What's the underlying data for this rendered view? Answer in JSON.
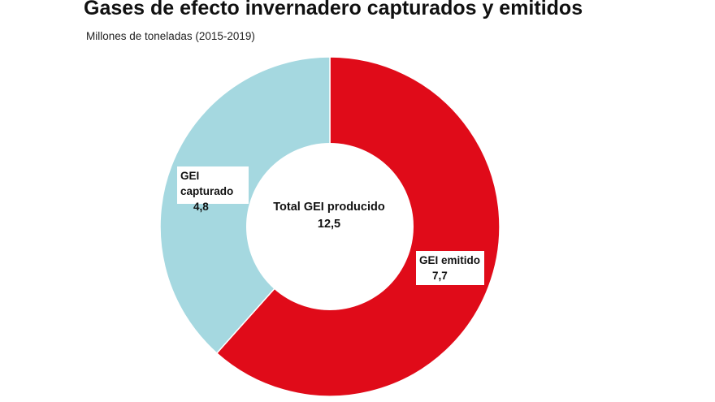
{
  "title": "Gases de efecto invernadero capturados y emitidos",
  "subtitle": "Millones de toneladas (2015-2019)",
  "chart_data": {
    "type": "pie",
    "style": "donut",
    "title": "Gases de efecto invernadero capturados y emitidos",
    "subtitle": "Millones de toneladas (2015-2019)",
    "slices": [
      {
        "label": "GEI emitido",
        "value": 7.7,
        "value_text": "7,7",
        "color": "#e00b19"
      },
      {
        "label": "GEI capturado",
        "value": 4.8,
        "value_text": "4,8",
        "color": "#a5d8e0"
      }
    ],
    "center": {
      "label": "Total GEI producido",
      "value": 12.5,
      "value_text": "12,5"
    },
    "legend": "none"
  }
}
